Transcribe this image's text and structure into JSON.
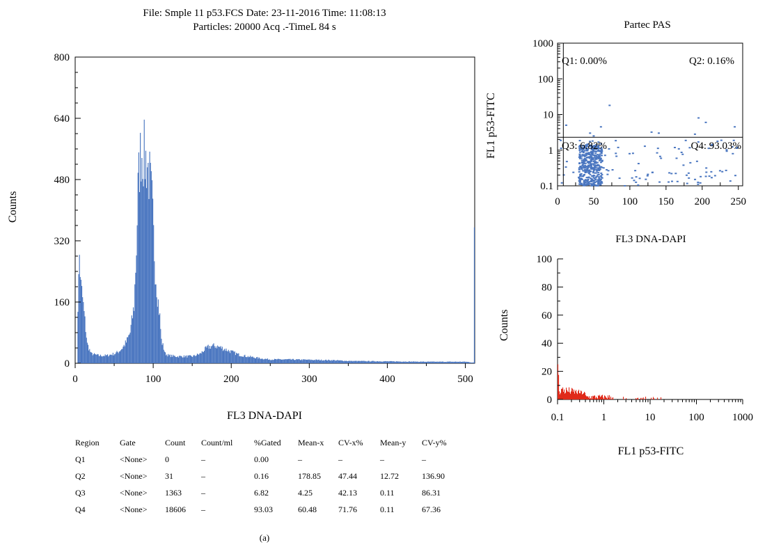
{
  "main": {
    "title_line1": "File: Smple 11 p53.FCS Date: 23-11-2016 Time: 11:08:13",
    "title_line2": "Particles: 20000 Acq .-TimeL 84 s",
    "ylabel": "Counts",
    "xlabel": "FL3 DNA-DAPI"
  },
  "scatter": {
    "title": "Partec PAS",
    "ylabel": "FL1 p53-FITC",
    "xlabel": "FL3 DNA-DAPI",
    "quadrants": {
      "q1": "Q1: 0.00%",
      "q2": "Q2: 0.16%",
      "q3": "Q3: 6.82%",
      "q4": "Q4: 93.03%"
    }
  },
  "hist2": {
    "ylabel": "Counts",
    "xlabel": "FL1 p53-FITC"
  },
  "table": {
    "headers": [
      "Region",
      "Gate",
      "Count",
      "Count/ml",
      "%Gated",
      "Mean-x",
      "CV-x%",
      "Mean-y",
      "CV-y%"
    ],
    "rows": [
      [
        "Q1",
        "<None>",
        "0",
        "–",
        "0.00",
        "–",
        "–",
        "–",
        "–"
      ],
      [
        "Q2",
        "<None>",
        "31",
        "–",
        "0.16",
        "178.85",
        "47.44",
        "12.72",
        "136.90"
      ],
      [
        "Q3",
        "<None>",
        "1363",
        "–",
        "6.82",
        "4.25",
        "42.13",
        "0.11",
        "86.31"
      ],
      [
        "Q4",
        "<None>",
        "18606",
        "–",
        "93.03",
        "60.48",
        "71.76",
        "0.11",
        "67.36"
      ]
    ]
  },
  "caption": "(a)",
  "colors": {
    "blue": "#4a76c0",
    "red": "#e02a1a"
  },
  "chart_data": [
    {
      "type": "histogram",
      "title": "File: Smple 11 p53.FCS Date: 23-11-2016 Time: 11:08:13 / Particles: 20000 Acq .-TimeL 84 s",
      "xlabel": "FL3 DNA-DAPI",
      "ylabel": "Counts",
      "xlim": [
        0,
        512
      ],
      "ylim": [
        0,
        800
      ],
      "xticks": [
        0,
        100,
        200,
        300,
        400,
        500
      ],
      "yticks": [
        0,
        160,
        320,
        480,
        640,
        800
      ],
      "color": "#4a76c0",
      "profile_x": [
        0,
        2,
        3,
        5,
        7,
        9,
        12,
        15,
        20,
        30,
        40,
        50,
        55,
        60,
        65,
        70,
        75,
        78,
        80,
        82,
        84,
        86,
        88,
        90,
        92,
        95,
        98,
        100,
        102,
        105,
        108,
        110,
        115,
        120,
        130,
        140,
        150,
        160,
        165,
        170,
        175,
        180,
        185,
        190,
        200,
        210,
        220,
        230,
        240,
        250,
        270,
        300,
        330,
        350,
        400,
        450,
        500,
        505,
        508,
        510,
        511
      ],
      "profile_y": [
        0,
        0,
        150,
        280,
        200,
        170,
        110,
        50,
        25,
        20,
        20,
        25,
        30,
        40,
        55,
        80,
        150,
        300,
        450,
        520,
        560,
        550,
        540,
        530,
        520,
        480,
        420,
        330,
        250,
        180,
        120,
        60,
        25,
        20,
        18,
        18,
        18,
        25,
        35,
        42,
        45,
        45,
        42,
        38,
        30,
        22,
        18,
        15,
        12,
        10,
        10,
        9,
        8,
        6,
        5,
        4,
        4,
        3,
        2,
        2,
        355
      ]
    },
    {
      "type": "scatter",
      "title": "Partec PAS",
      "xlabel": "FL3 DNA-DAPI",
      "ylabel": "FL1 p53-FITC",
      "xlim": [
        0,
        256
      ],
      "ylim": [
        0.1,
        1000
      ],
      "yscale": "log",
      "xticks": [
        0,
        50,
        100,
        150,
        200,
        250
      ],
      "yticks": [
        0.1,
        1,
        10,
        100,
        1000
      ],
      "quadrant_lines": {
        "x": 8,
        "y": 2.3
      },
      "quadrants": [
        {
          "name": "Q1",
          "percent": 0.0
        },
        {
          "name": "Q2",
          "percent": 0.16
        },
        {
          "name": "Q3",
          "percent": 6.82
        },
        {
          "name": "Q4",
          "percent": 93.03
        }
      ],
      "color": "#4a76c0",
      "points": [
        [
          72,
          18
        ],
        [
          195,
          8
        ],
        [
          205,
          6
        ],
        [
          245,
          4.5
        ],
        [
          60,
          4.5
        ],
        [
          130,
          3.2
        ],
        [
          12,
          5
        ],
        [
          45,
          3
        ],
        [
          50,
          2.5
        ],
        [
          190,
          2.8
        ],
        [
          140,
          3
        ]
      ]
    },
    {
      "type": "histogram",
      "title": "FL3 DNA-DAPI",
      "xlabel": "FL1 p53-FITC",
      "ylabel": "Counts",
      "xlim": [
        0.1,
        1000
      ],
      "xscale": "log",
      "ylim": [
        0,
        100
      ],
      "xticks": [
        0.1,
        1,
        10,
        100,
        1000
      ],
      "yticks": [
        0,
        20,
        40,
        60,
        80,
        100
      ],
      "color": "#e02a1a",
      "peak": {
        "x": 0.1,
        "y": 25
      }
    }
  ]
}
